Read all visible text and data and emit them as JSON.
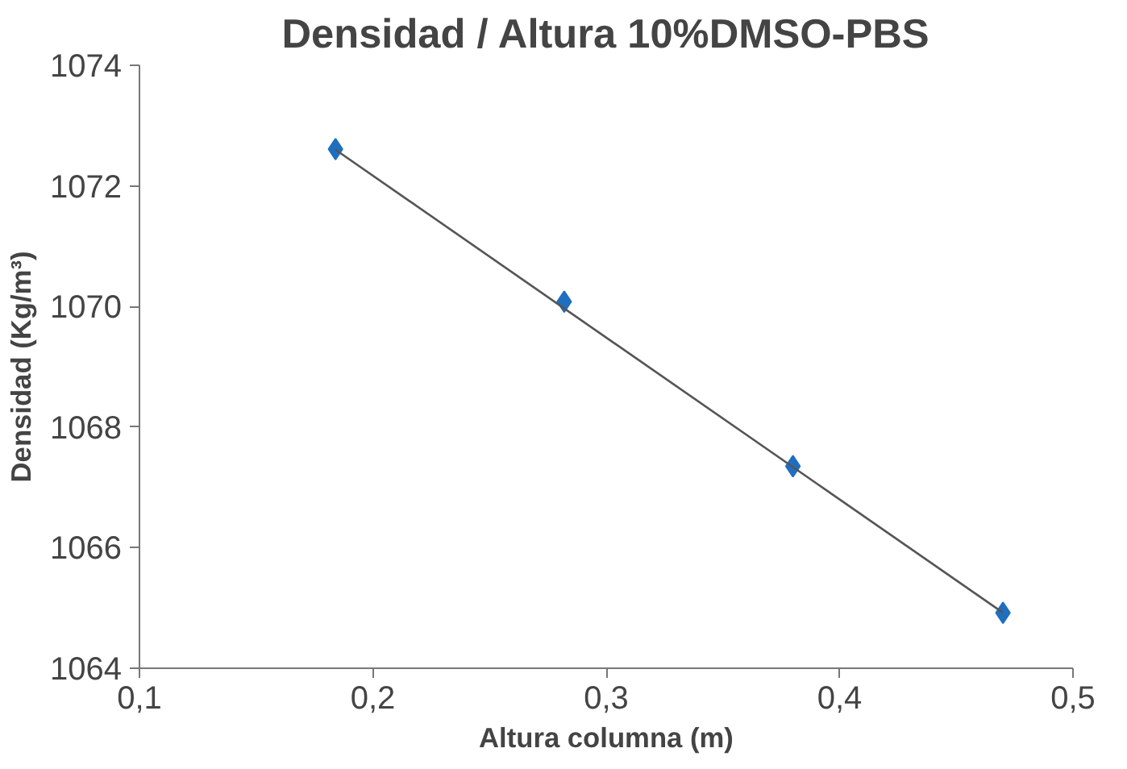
{
  "chart_data": {
    "type": "scatter",
    "title": "Densidad / Altura 10%DMSO-PBS",
    "xlabel": "Altura columna (m)",
    "ylabel": "Densidad (Kg/m³)",
    "xlim": [
      0.1,
      0.5
    ],
    "xticks": [
      {
        "value": 0.1,
        "label": "0,1"
      },
      {
        "value": 0.2,
        "label": "0,2"
      },
      {
        "value": 0.3,
        "label": "0,3"
      },
      {
        "value": 0.4,
        "label": "0,4"
      },
      {
        "value": 0.5,
        "label": "0,5"
      }
    ],
    "ylim": [
      1064,
      1074
    ],
    "yticks": [
      1064,
      1066,
      1068,
      1070,
      1072,
      1074
    ],
    "grid": false,
    "marker": "diamond",
    "series": [
      {
        "color": "#1f6fc0",
        "x": [
          0.184,
          0.282,
          0.38,
          0.47
        ],
        "values": [
          1072.61,
          1070.08,
          1067.35,
          1064.92
        ]
      },
      {
        "type": "line",
        "color": "#555555",
        "marker": "none",
        "x": [
          0.184,
          0.47
        ],
        "values": [
          1072.6,
          1064.92
        ]
      }
    ]
  }
}
